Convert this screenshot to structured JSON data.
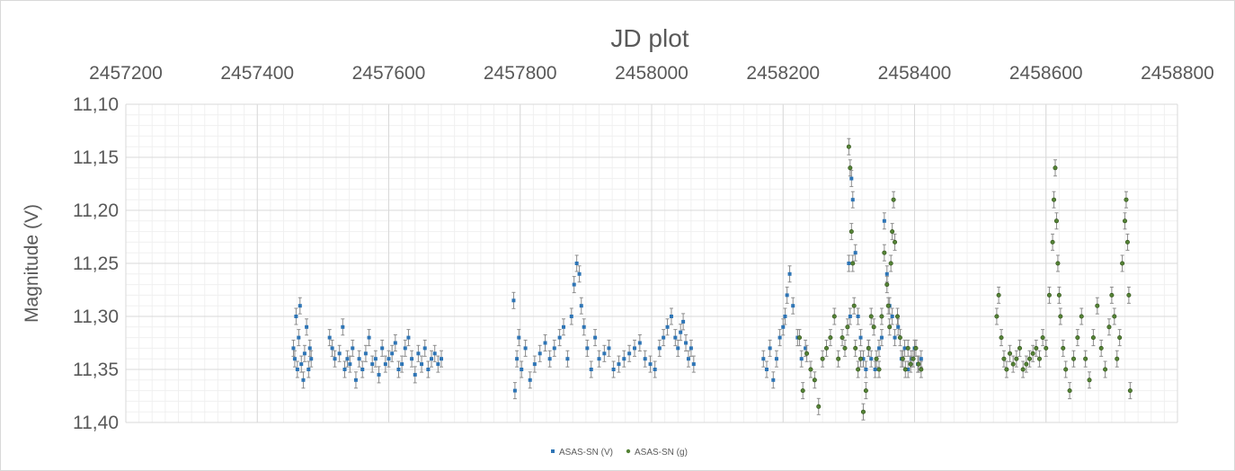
{
  "chart_data": {
    "type": "scatter",
    "title": "JD plot",
    "xlabel": "",
    "ylabel": "Magnitude (V)",
    "x_axis_position": "top",
    "y_axis_reversed": true,
    "xlim": [
      2457200,
      2458800
    ],
    "ylim": [
      11.1,
      11.4
    ],
    "x_ticks": [
      2457200,
      2457400,
      2457600,
      2457800,
      2458000,
      2458200,
      2458400,
      2458600,
      2458800
    ],
    "x_tick_labels": [
      "2457200",
      "2457400",
      "2457600",
      "2457800",
      "2458000",
      "2458200",
      "2458400",
      "2458600",
      "2458800"
    ],
    "y_ticks": [
      11.1,
      11.15,
      11.2,
      11.25,
      11.3,
      11.35,
      11.4
    ],
    "y_tick_labels": [
      "11,10",
      "11,15",
      "11,20",
      "11,25",
      "11,30",
      "11,35",
      "11,40"
    ],
    "grid": true,
    "minor_grid": true,
    "error_bars": true,
    "legend_position": "bottom-center",
    "series": [
      {
        "name": "ASAS-SN (V)",
        "color": "#2e75b6",
        "marker": "square",
        "x": [
          2457455,
          2457457,
          2457459,
          2457461,
          2457463,
          2457465,
          2457467,
          2457470,
          2457472,
          2457475,
          2457478,
          2457480,
          2457482,
          2457510,
          2457514,
          2457518,
          2457525,
          2457530,
          2457533,
          2457537,
          2457541,
          2457545,
          2457550,
          2457555,
          2457560,
          2457565,
          2457570,
          2457575,
          2457580,
          2457585,
          2457590,
          2457595,
          2457600,
          2457605,
          2457610,
          2457615,
          2457620,
          2457625,
          2457630,
          2457635,
          2457640,
          2457645,
          2457650,
          2457655,
          2457660,
          2457665,
          2457670,
          2457675,
          2457680,
          2457790,
          2457792,
          2457795,
          2457798,
          2457802,
          2457808,
          2457815,
          2457822,
          2457830,
          2457838,
          2457845,
          2457852,
          2457860,
          2457866,
          2457872,
          2457878,
          2457882,
          2457886,
          2457890,
          2457893,
          2457897,
          2457902,
          2457908,
          2457914,
          2457920,
          2457928,
          2457935,
          2457942,
          2457950,
          2457958,
          2457966,
          2457974,
          2457982,
          2457990,
          2457998,
          2458005,
          2458012,
          2458018,
          2458024,
          2458030,
          2458036,
          2458040,
          2458044,
          2458048,
          2458052,
          2458056,
          2458060,
          2458064,
          2458170,
          2458175,
          2458180,
          2458185,
          2458190,
          2458195,
          2458200,
          2458203,
          2458206,
          2458210,
          2458215,
          2458222,
          2458228,
          2458234,
          2458300,
          2458302,
          2458304,
          2458306,
          2458310,
          2458314,
          2458318,
          2458322,
          2458326,
          2458330,
          2458334,
          2458340,
          2458346,
          2458350,
          2458354,
          2458358,
          2458362,
          2458366,
          2458370,
          2458375,
          2458380,
          2458385,
          2458390,
          2458395,
          2458400,
          2458405,
          2458410
        ],
        "y": [
          11.33,
          11.34,
          11.3,
          11.35,
          11.32,
          11.29,
          11.345,
          11.36,
          11.335,
          11.31,
          11.35,
          11.33,
          11.34,
          11.32,
          11.33,
          11.34,
          11.335,
          11.31,
          11.35,
          11.34,
          11.345,
          11.33,
          11.36,
          11.34,
          11.35,
          11.335,
          11.32,
          11.345,
          11.34,
          11.355,
          11.33,
          11.345,
          11.34,
          11.335,
          11.325,
          11.35,
          11.345,
          11.33,
          11.32,
          11.34,
          11.355,
          11.335,
          11.345,
          11.33,
          11.35,
          11.34,
          11.335,
          11.345,
          11.34,
          11.285,
          11.37,
          11.34,
          11.32,
          11.35,
          11.33,
          11.36,
          11.345,
          11.335,
          11.325,
          11.34,
          11.33,
          11.32,
          11.31,
          11.34,
          11.3,
          11.27,
          11.25,
          11.26,
          11.29,
          11.31,
          11.33,
          11.35,
          11.32,
          11.34,
          11.335,
          11.33,
          11.35,
          11.345,
          11.34,
          11.335,
          11.33,
          11.325,
          11.34,
          11.345,
          11.35,
          11.33,
          11.32,
          11.31,
          11.3,
          11.32,
          11.33,
          11.315,
          11.305,
          11.325,
          11.34,
          11.33,
          11.345,
          11.34,
          11.35,
          11.33,
          11.36,
          11.34,
          11.32,
          11.31,
          11.3,
          11.28,
          11.26,
          11.29,
          11.32,
          11.34,
          11.33,
          11.25,
          11.3,
          11.17,
          11.19,
          11.24,
          11.3,
          11.32,
          11.34,
          11.35,
          11.33,
          11.34,
          11.35,
          11.33,
          11.32,
          11.21,
          11.26,
          11.29,
          11.3,
          11.32,
          11.31,
          11.34,
          11.33,
          11.35,
          11.34,
          11.33,
          11.345,
          11.34
        ]
      },
      {
        "name": "ASAS-SN (g)",
        "color": "#548235",
        "marker": "circle",
        "x": [
          2458225,
          2458230,
          2458236,
          2458242,
          2458248,
          2458254,
          2458260,
          2458266,
          2458272,
          2458278,
          2458284,
          2458290,
          2458294,
          2458298,
          2458300,
          2458302,
          2458304,
          2458306,
          2458308,
          2458310,
          2458314,
          2458318,
          2458322,
          2458326,
          2458330,
          2458334,
          2458338,
          2458342,
          2458346,
          2458350,
          2458354,
          2458358,
          2458360,
          2458362,
          2458364,
          2458366,
          2458368,
          2458370,
          2458374,
          2458378,
          2458382,
          2458386,
          2458390,
          2458394,
          2458398,
          2458402,
          2458406,
          2458410,
          2458525,
          2458528,
          2458532,
          2458536,
          2458540,
          2458545,
          2458550,
          2458555,
          2458560,
          2458565,
          2458570,
          2458575,
          2458580,
          2458585,
          2458590,
          2458595,
          2458600,
          2458605,
          2458610,
          2458612,
          2458614,
          2458616,
          2458618,
          2458620,
          2458622,
          2458626,
          2458630,
          2458636,
          2458642,
          2458648,
          2458654,
          2458660,
          2458666,
          2458672,
          2458678,
          2458684,
          2458690,
          2458696,
          2458700,
          2458704,
          2458708,
          2458712,
          2458716,
          2458720,
          2458722,
          2458724,
          2458726,
          2458728
        ],
        "y": [
          11.32,
          11.37,
          11.335,
          11.35,
          11.36,
          11.385,
          11.34,
          11.33,
          11.32,
          11.3,
          11.34,
          11.32,
          11.33,
          11.31,
          11.14,
          11.16,
          11.22,
          11.25,
          11.29,
          11.33,
          11.35,
          11.34,
          11.39,
          11.37,
          11.33,
          11.3,
          11.31,
          11.34,
          11.35,
          11.3,
          11.24,
          11.27,
          11.29,
          11.31,
          11.25,
          11.22,
          11.19,
          11.23,
          11.3,
          11.32,
          11.34,
          11.35,
          11.33,
          11.345,
          11.34,
          11.33,
          11.345,
          11.35,
          11.3,
          11.28,
          11.32,
          11.34,
          11.35,
          11.335,
          11.345,
          11.34,
          11.33,
          11.35,
          11.345,
          11.34,
          11.335,
          11.33,
          11.34,
          11.32,
          11.33,
          11.28,
          11.23,
          11.19,
          11.16,
          11.21,
          11.25,
          11.28,
          11.3,
          11.33,
          11.35,
          11.37,
          11.34,
          11.32,
          11.3,
          11.34,
          11.36,
          11.32,
          11.29,
          11.33,
          11.35,
          11.31,
          11.28,
          11.3,
          11.34,
          11.32,
          11.25,
          11.21,
          11.19,
          11.23,
          11.28,
          11.37
        ]
      }
    ]
  }
}
